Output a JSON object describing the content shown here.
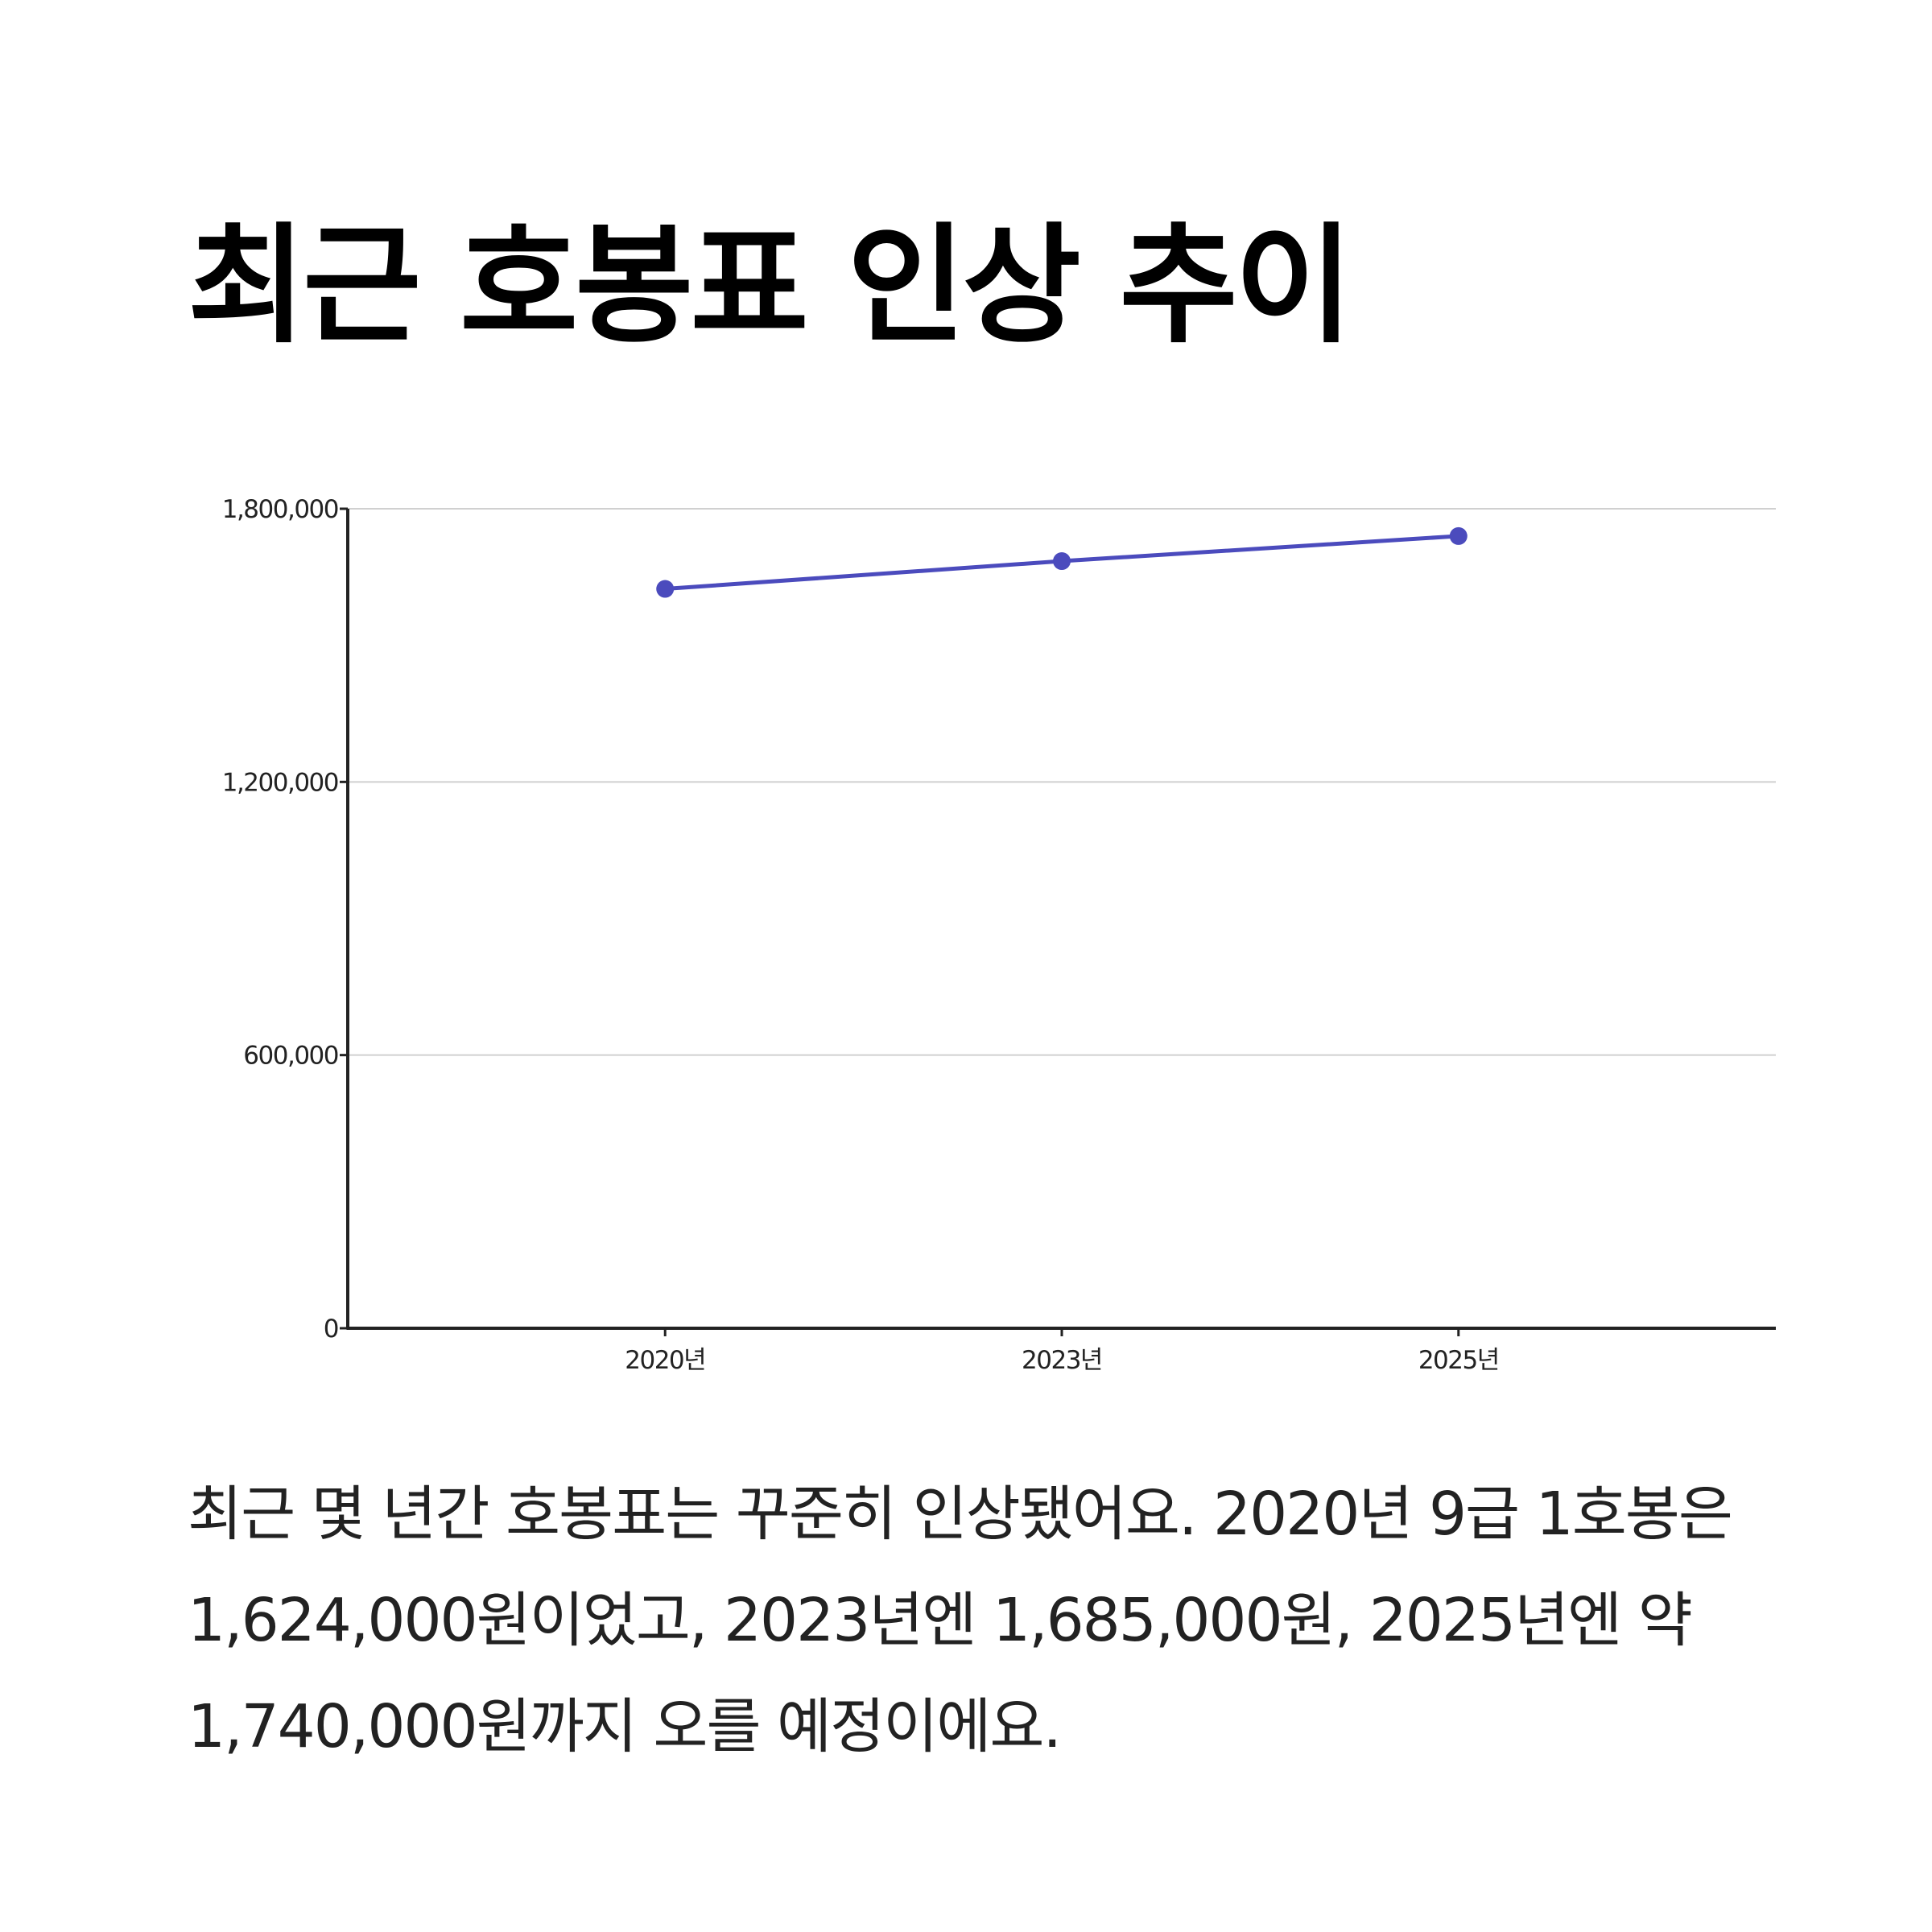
{
  "chart_data": {
    "type": "line",
    "title": "최근 호봉표 인상 추이",
    "categories": [
      "2020년",
      "2023년",
      "2025년"
    ],
    "values": [
      1624000,
      1685000,
      1740000
    ],
    "color": "#4b4bbd",
    "ylim": [
      0,
      1800000
    ],
    "yticks": [
      0,
      {
        "value": 600000,
        "label": "600,000"
      },
      {
        "value": 1200000,
        "label": "1,200,000"
      },
      {
        "value": 1800000,
        "label": "1,800,000"
      }
    ],
    "grid": true
  },
  "description": "최근 몇 년간 호봉표는 꾸준히 인상됐어요. 2020년 9급 1호봉은 1,624,000원이었고, 2023년엔 1,685,000원, 2025년엔 약 1,740,000원까지 오를 예정이에요."
}
